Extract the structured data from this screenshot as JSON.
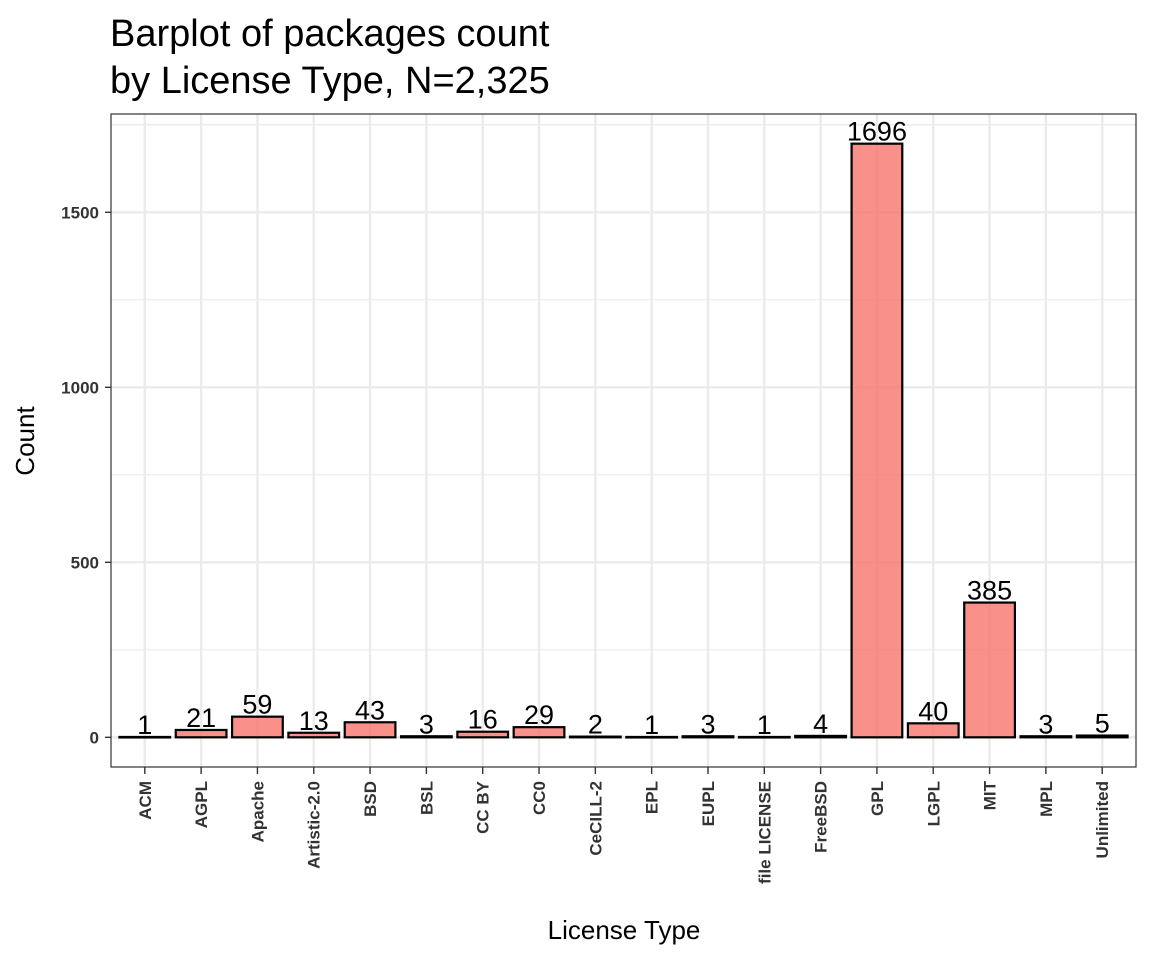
{
  "chart_data": {
    "type": "bar",
    "title": "Barplot of packages count",
    "subtitle": "by License Type, N=2,325",
    "xlabel": "License Type",
    "ylabel": "Count",
    "categories": [
      "ACM",
      "AGPL",
      "Apache",
      "Artistic-2.0",
      "BSD",
      "BSL",
      "CC BY",
      "CC0",
      "CeCILL-2",
      "EPL",
      "EUPL",
      "file LICENSE",
      "FreeBSD",
      "GPL",
      "LGPL",
      "MIT",
      "MPL",
      "Unlimited"
    ],
    "values": [
      1,
      21,
      59,
      13,
      43,
      3,
      16,
      29,
      2,
      1,
      3,
      1,
      4,
      1696,
      40,
      385,
      3,
      5
    ],
    "yticks": [
      0,
      500,
      1000,
      1500
    ],
    "ylim": [
      -84.8,
      1780.8
    ],
    "grid": true,
    "legend": "none",
    "bar_color": "#F8766D",
    "bar_outline": "#000000",
    "panel_border": "#333333",
    "grid_color": "#EBEBEB"
  }
}
